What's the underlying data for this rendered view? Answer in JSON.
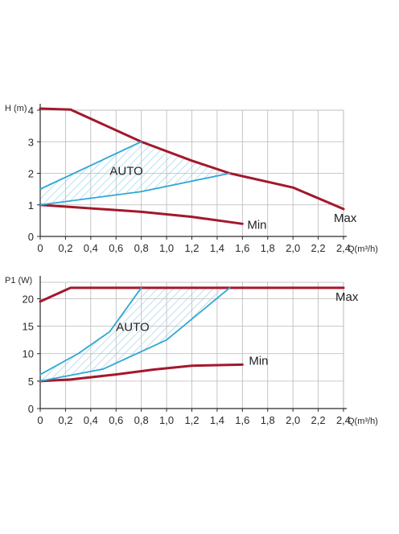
{
  "colors": {
    "max_min": "#a3182b",
    "auto": "#2fa7d6",
    "hatch": "#9fd3e8",
    "grid": "#b8b8b8",
    "axis": "#2a2a2a"
  },
  "chart_data": [
    {
      "type": "line",
      "ylabel": "H (m)",
      "xlabel": "Q(m³/h)",
      "xlim": [
        0,
        2.4
      ],
      "ylim": [
        0,
        4
      ],
      "x_ticks": [
        "0",
        "0,2",
        "0,4",
        "0,6",
        "0,8",
        "1,0",
        "1,2",
        "1,4",
        "1,6",
        "1,8",
        "2,0",
        "2,2",
        "2,4"
      ],
      "y_ticks": [
        "0",
        "1",
        "2",
        "3",
        "4"
      ],
      "grid": true,
      "series": [
        {
          "name": "Max",
          "color": "#a3182b",
          "points": [
            [
              0,
              4.05
            ],
            [
              0.24,
              4.02
            ],
            [
              0.8,
              3.0
            ],
            [
              1.2,
              2.4
            ],
            [
              1.5,
              2.0
            ],
            [
              2.0,
              1.55
            ],
            [
              2.4,
              0.87
            ]
          ]
        },
        {
          "name": "Min",
          "color": "#a3182b",
          "points": [
            [
              0,
              1.0
            ],
            [
              0.8,
              0.78
            ],
            [
              1.2,
              0.62
            ],
            [
              1.6,
              0.4
            ]
          ]
        },
        {
          "name": "",
          "color": "#2fa7d6",
          "points": [
            [
              0,
              1.5
            ],
            [
              0.8,
              3.0
            ]
          ]
        },
        {
          "name": "",
          "color": "#2fa7d6",
          "points": [
            [
              0,
              1.0
            ],
            [
              0.8,
              1.42
            ],
            [
              1.5,
              2.0
            ]
          ]
        }
      ],
      "auto_region": {
        "label": "AUTO",
        "upper": [
          [
            0,
            1.5
          ],
          [
            0.8,
            3.0
          ],
          [
            1.2,
            2.4
          ],
          [
            1.5,
            2.0
          ]
        ],
        "lower": [
          [
            0,
            1.0
          ],
          [
            0.8,
            1.42
          ],
          [
            1.5,
            2.0
          ]
        ]
      }
    },
    {
      "type": "line",
      "ylabel": "P1 (W)",
      "xlabel": "Q(m³/h)",
      "xlim": [
        0,
        2.4
      ],
      "ylim": [
        0,
        23
      ],
      "x_ticks": [
        "0",
        "0,2",
        "0,4",
        "0,6",
        "0,8",
        "1,0",
        "1,2",
        "1,4",
        "1,6",
        "1,8",
        "2,0",
        "2,2",
        "2,4"
      ],
      "y_ticks": [
        "0",
        "5",
        "10",
        "15",
        "20"
      ],
      "grid": true,
      "series": [
        {
          "name": "Max",
          "color": "#a3182b",
          "points": [
            [
              0,
              19.5
            ],
            [
              0.24,
              22.0
            ],
            [
              2.4,
              22.0
            ]
          ]
        },
        {
          "name": "Min",
          "color": "#a3182b",
          "points": [
            [
              0,
              5.0
            ],
            [
              0.24,
              5.3
            ],
            [
              0.6,
              6.2
            ],
            [
              0.9,
              7.1
            ],
            [
              1.2,
              7.8
            ],
            [
              1.6,
              8.0
            ]
          ]
        },
        {
          "name": "",
          "color": "#2fa7d6",
          "points": [
            [
              0,
              6.2
            ],
            [
              0.3,
              10.0
            ],
            [
              0.55,
              14.0
            ],
            [
              0.8,
              22.0
            ]
          ]
        },
        {
          "name": "",
          "color": "#2fa7d6",
          "points": [
            [
              0,
              5.0
            ],
            [
              0.5,
              7.2
            ],
            [
              1.0,
              12.5
            ],
            [
              1.5,
              22.0
            ]
          ]
        }
      ],
      "auto_region": {
        "label": "AUTO",
        "upper": [
          [
            0,
            6.2
          ],
          [
            0.3,
            10.0
          ],
          [
            0.55,
            14.0
          ],
          [
            0.8,
            22.0
          ],
          [
            1.5,
            22.0
          ]
        ],
        "lower": [
          [
            0,
            5.0
          ],
          [
            0.5,
            7.2
          ],
          [
            1.0,
            12.5
          ],
          [
            1.5,
            22.0
          ]
        ]
      }
    }
  ]
}
